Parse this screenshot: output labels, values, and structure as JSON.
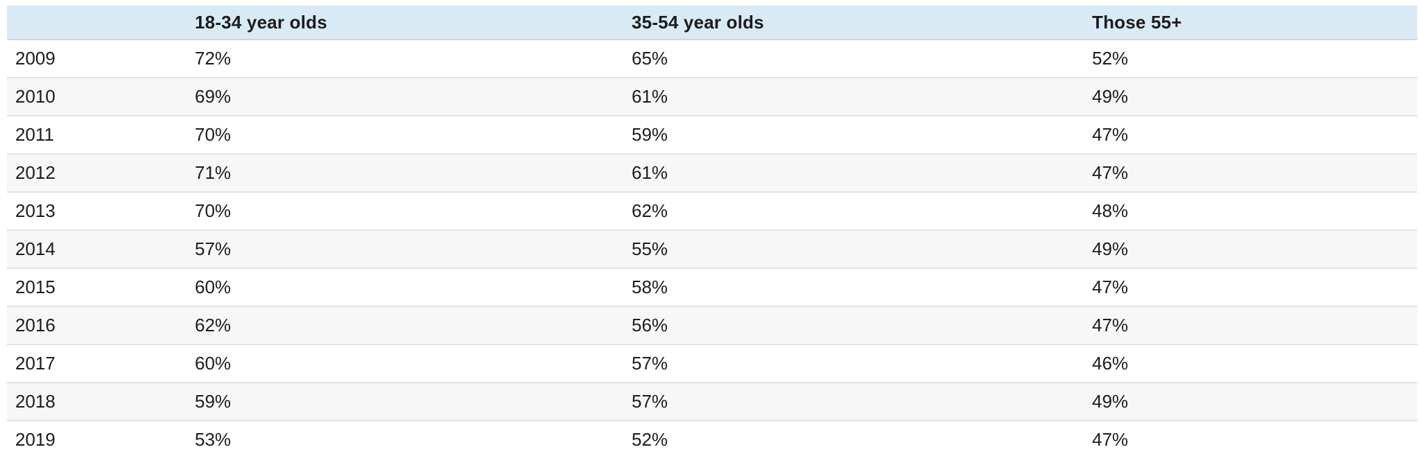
{
  "colors": {
    "header_bg": "#d8ebf5",
    "row_alt_bg": "#f7f7f7",
    "row_border": "#e2e2e2",
    "text": "#1c1c1c"
  },
  "table": {
    "header": {
      "years_label": "",
      "col1": "18-34 year olds",
      "col2": "35-54 year olds",
      "col3": "Those 55+"
    },
    "rows": [
      {
        "year": "2009",
        "values": [
          "72%",
          "65%",
          "52%"
        ]
      },
      {
        "year": "2010",
        "values": [
          "69%",
          "61%",
          "49%"
        ]
      },
      {
        "year": "2011",
        "values": [
          "70%",
          "59%",
          "47%"
        ]
      },
      {
        "year": "2012",
        "values": [
          "71%",
          "61%",
          "47%"
        ]
      },
      {
        "year": "2013",
        "values": [
          "70%",
          "62%",
          "48%"
        ]
      },
      {
        "year": "2014",
        "values": [
          "57%",
          "55%",
          "49%"
        ]
      },
      {
        "year": "2015",
        "values": [
          "60%",
          "58%",
          "47%"
        ]
      },
      {
        "year": "2016",
        "values": [
          "62%",
          "56%",
          "47%"
        ]
      },
      {
        "year": "2017",
        "values": [
          "60%",
          "57%",
          "46%"
        ]
      },
      {
        "year": "2018",
        "values": [
          "59%",
          "57%",
          "49%"
        ]
      },
      {
        "year": "2019",
        "values": [
          "53%",
          "52%",
          "47%"
        ]
      }
    ]
  },
  "chart_data": {
    "type": "table",
    "title": "",
    "categories": [
      "2009",
      "2010",
      "2011",
      "2012",
      "2013",
      "2014",
      "2015",
      "2016",
      "2017",
      "2018",
      "2019"
    ],
    "series": [
      {
        "name": "18-34 year olds",
        "values": [
          72,
          69,
          70,
          71,
          70,
          57,
          60,
          62,
          60,
          59,
          53
        ]
      },
      {
        "name": "35-54 year olds",
        "values": [
          65,
          61,
          59,
          61,
          62,
          55,
          58,
          56,
          57,
          57,
          52
        ]
      },
      {
        "name": "Those 55+",
        "values": [
          52,
          49,
          47,
          47,
          48,
          49,
          47,
          47,
          46,
          49,
          47
        ]
      }
    ],
    "value_unit": "%",
    "layout_hints": {
      "header_background": "#d8ebf5",
      "zebra_striping": true,
      "gridlines": "horizontal-only"
    }
  }
}
